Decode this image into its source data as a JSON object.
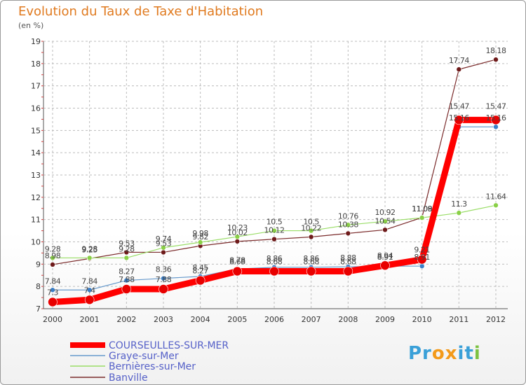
{
  "chart_data": {
    "type": "line",
    "title": "Evolution du Taux de Taxe d'Habitation",
    "subtitle": "(en %)",
    "xlabel": "",
    "ylabel": "",
    "ylim": [
      7,
      19
    ],
    "yticks": [
      7,
      8,
      9,
      10,
      11,
      12,
      13,
      14,
      15,
      16,
      17,
      18,
      19
    ],
    "categories": [
      "2000",
      "2001",
      "2002",
      "2003",
      "2004",
      "2005",
      "2006",
      "2007",
      "2008",
      "2009",
      "2010",
      "2011",
      "2012"
    ],
    "series": [
      {
        "name": "COURSEULLES-SUR-MER",
        "color": "#ff0000",
        "dot": "#e80000",
        "values": [
          7.3,
          7.4,
          7.88,
          7.88,
          8.27,
          8.68,
          8.68,
          8.68,
          8.68,
          8.94,
          9.21,
          15.47,
          15.47
        ],
        "labels": [
          "7.3",
          "7.4",
          "7.88",
          "7.88",
          "8.27",
          "8.68",
          "8.68",
          "8.68",
          "8.68",
          "8.94",
          "9.21",
          "15.47",
          "15.47"
        ]
      },
      {
        "name": "Graye-sur-Mer",
        "color": "#6699cc",
        "dot": "#3a7fc8",
        "values": [
          7.84,
          7.84,
          8.27,
          8.36,
          8.45,
          8.78,
          8.86,
          8.86,
          8.88,
          8.91,
          8.91,
          15.16,
          15.16
        ],
        "labels": [
          "7.84",
          "7.84",
          "8.27",
          "8.36",
          "8.45",
          "8.78",
          "8.86",
          "8.86",
          "8.88",
          "8.91",
          "8.91",
          "15.16",
          "15.16"
        ]
      },
      {
        "name": "Bernières-sur-Mer",
        "color": "#99dd66",
        "dot": "#8ad047",
        "values": [
          9.28,
          9.28,
          9.28,
          9.74,
          9.98,
          10.23,
          10.5,
          10.5,
          10.76,
          10.92,
          11.08,
          11.3,
          11.64
        ],
        "labels": [
          "9.28",
          "9.28",
          "9.28",
          "9.74",
          "9.98",
          "10.23",
          "10.5",
          "10.5",
          "10.76",
          "10.92",
          "11.08",
          "11.3",
          "11.64"
        ]
      },
      {
        "name": "Banville",
        "color": "#7a2a2a",
        "dot": "#6e1a1a",
        "values": [
          8.98,
          9.25,
          9.53,
          9.53,
          9.82,
          10.02,
          10.12,
          10.22,
          10.38,
          10.54,
          11.09,
          17.74,
          18.18
        ],
        "labels": [
          "8.98",
          "9.25",
          "9.53",
          "9.53",
          "9.82",
          "10.02",
          "10.12",
          "10.22",
          "10.38",
          "10.54",
          "11.09",
          "17.74",
          "18.18"
        ]
      }
    ],
    "legend_position": "bottom-left"
  },
  "brand": {
    "p": "Pr",
    "o": "o",
    "x": "x",
    "i": "i",
    "t": "t",
    "i2": "i"
  }
}
